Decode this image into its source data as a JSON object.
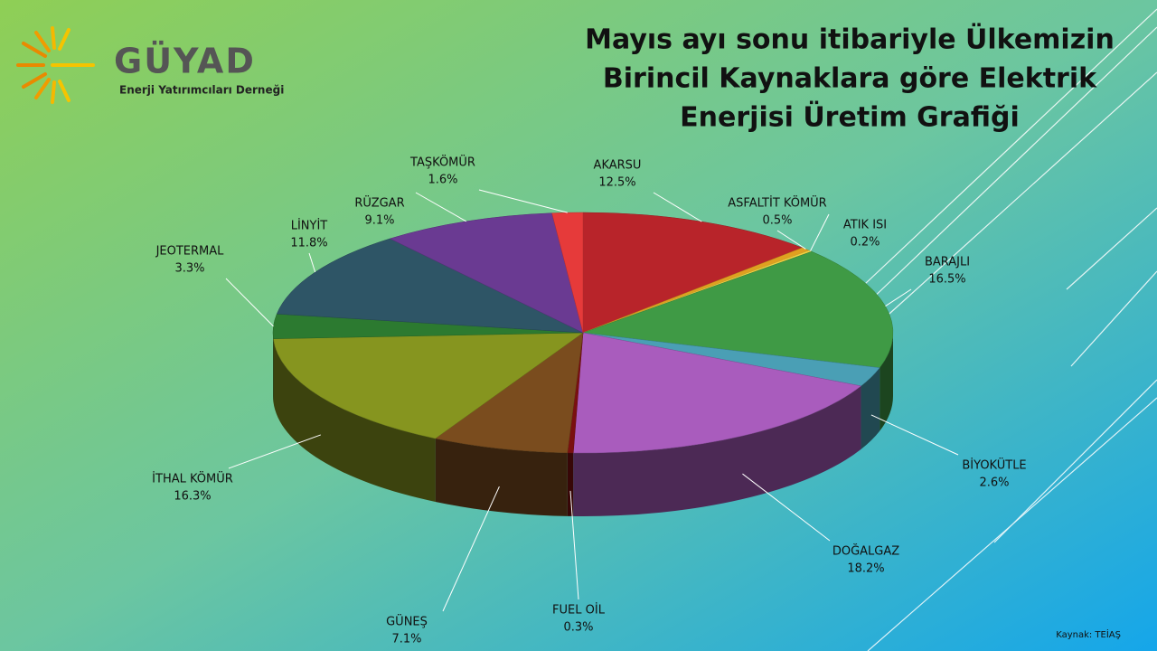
{
  "logo": {
    "name": "GÜYAD",
    "subtitle": "Enerji Yatırımcıları Derneği"
  },
  "source": "Kaynak: TEİAŞ",
  "chart_data": {
    "type": "pie",
    "title": [
      "Mayıs ayı sonu itibariyle Ülkemizin",
      "Birincil Kaynaklara göre Elektrik",
      "Enerjisi Üretim Grafiği"
    ],
    "categories": [
      "AKARSU",
      "ASFALTİT KÖMÜR",
      "ATIK ISI",
      "BARAJLI",
      "BİYOKÜTLE",
      "DOĞALGAZ",
      "FUEL OİL",
      "GÜNEŞ",
      "İTHAL KÖMÜR",
      "JEOTERMAL",
      "LİNYİT",
      "RÜZGAR",
      "TAŞKÖMÜR"
    ],
    "values": [
      12.5,
      0.5,
      0.2,
      16.5,
      2.6,
      18.2,
      0.3,
      7.1,
      16.3,
      3.3,
      11.8,
      9.1,
      1.6
    ],
    "value_labels": [
      "12.5%",
      "0.5%",
      "0.2%",
      "16.5%",
      "2.6%",
      "18.2%",
      "0.3%",
      "7.1%",
      "16.3%",
      "3.3%",
      "11.8%",
      "9.1%",
      "1.6%"
    ],
    "colors": [
      "#b8242a",
      "#e0a020",
      "#f2d040",
      "#3f9a45",
      "#4a9fb5",
      "#a95cbd",
      "#7a1010",
      "#7a4c1e",
      "#86951f",
      "#2c7a30",
      "#2e5566",
      "#6a3a92",
      "#e63a3a"
    ]
  }
}
